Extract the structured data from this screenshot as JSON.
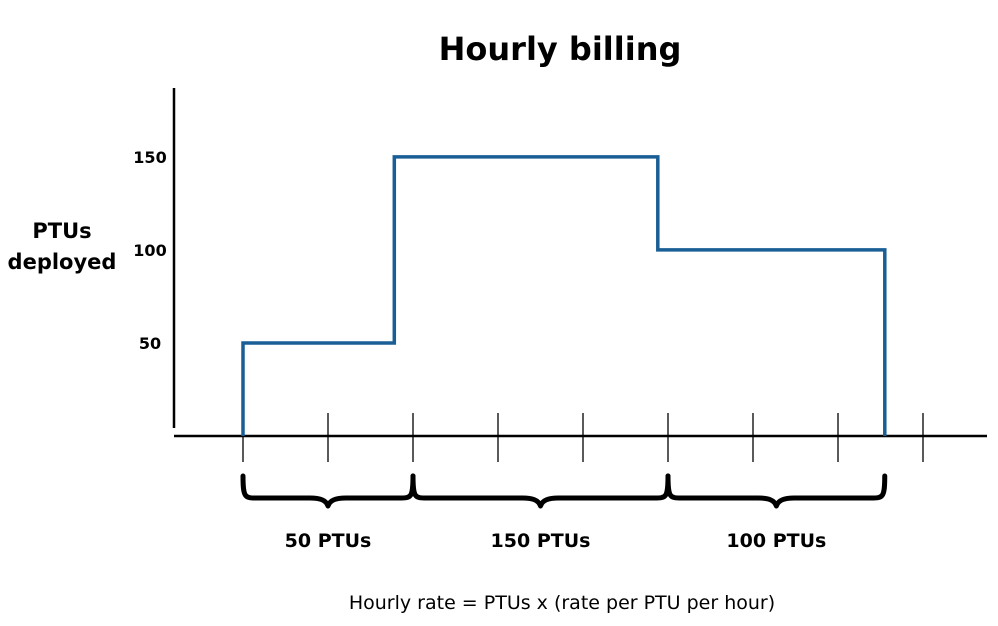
{
  "chart_data": {
    "type": "line",
    "step": true,
    "title": "Hourly billing",
    "ylabel_lines": [
      "PTUs",
      "deployed"
    ],
    "xlabel": "",
    "yticks": [
      {
        "value": 50,
        "label": "50"
      },
      {
        "value": 100,
        "label": "100"
      },
      {
        "value": 150,
        "label": "150"
      }
    ],
    "ylim": [
      0,
      187
    ],
    "xlim": [
      -0.8,
      8.7
    ],
    "x_ticks": [
      0,
      1,
      2,
      3,
      4,
      5,
      6,
      7,
      8
    ],
    "grid": false,
    "legend": "none",
    "line_color": "#1a5e96",
    "steps": [
      {
        "x": 0,
        "y": 0
      },
      {
        "x": 0,
        "y": 50
      },
      {
        "x": 1.78,
        "y": 50
      },
      {
        "x": 1.78,
        "y": 150
      },
      {
        "x": 4.88,
        "y": 150
      },
      {
        "x": 4.88,
        "y": 100
      },
      {
        "x": 7.55,
        "y": 100
      },
      {
        "x": 7.55,
        "y": 0
      }
    ],
    "segments": [
      {
        "label": "50 PTUs",
        "start": 0,
        "end": 2
      },
      {
        "label": "150 PTUs",
        "start": 2,
        "end": 5
      },
      {
        "label": "100 PTUs",
        "start": 5,
        "end": 7.55
      }
    ],
    "formula": "Hourly rate = PTUs x (rate per PTU per hour)"
  }
}
